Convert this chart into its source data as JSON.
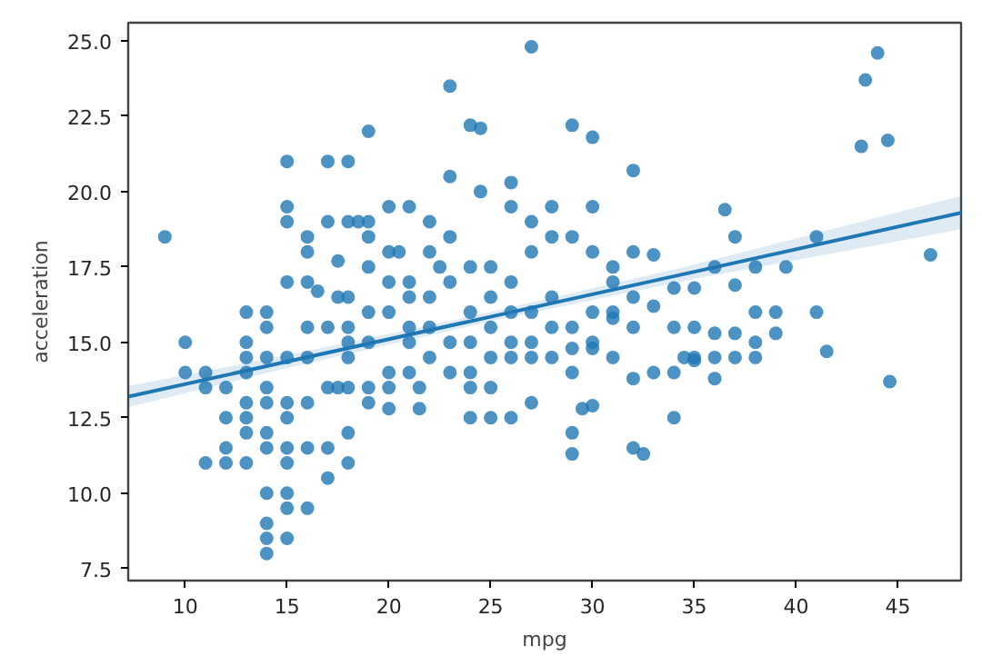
{
  "chart_data": {
    "type": "scatter",
    "xlabel": "mpg",
    "ylabel": "acceleration",
    "xlim": [
      7.2,
      48.1
    ],
    "ylim": [
      7.1,
      25.6
    ],
    "xticks": [
      10,
      15,
      20,
      25,
      30,
      35,
      40,
      45
    ],
    "yticks": [
      {
        "value": 7.5,
        "label": "7.5"
      },
      {
        "value": 10,
        "label": "10.0"
      },
      {
        "value": 12.5,
        "label": "12.5"
      },
      {
        "value": 15,
        "label": "15.0"
      },
      {
        "value": 17.5,
        "label": "17.5"
      },
      {
        "value": 20,
        "label": "20.0"
      },
      {
        "value": 22.5,
        "label": "22.5"
      },
      {
        "value": 25,
        "label": "25.0"
      }
    ],
    "grid": false,
    "series": [
      {
        "marker": "circle",
        "color": "#1f77b4",
        "x": [
          9,
          10,
          10,
          11,
          11,
          11,
          12,
          12,
          12,
          12,
          13,
          13,
          13,
          13,
          13,
          13,
          13,
          13,
          14,
          14,
          14,
          14,
          14,
          14,
          14,
          14,
          14,
          14,
          14,
          15,
          15,
          15,
          15,
          15,
          15,
          15,
          15,
          15,
          15,
          15,
          15,
          16,
          16,
          16,
          16,
          16,
          16,
          16,
          16,
          16.5,
          17,
          17,
          17,
          17,
          17,
          17,
          17.5,
          17.5,
          17.5,
          18,
          18,
          18,
          18,
          18,
          18,
          18,
          18,
          18,
          18.5,
          19,
          19,
          19,
          19,
          19,
          19,
          19,
          19,
          20,
          20,
          20,
          20,
          20,
          20,
          20,
          20.5,
          21,
          21,
          21,
          21,
          21,
          21,
          21.5,
          21.5,
          22,
          22,
          22,
          22,
          22,
          22.5,
          23,
          23,
          23,
          23,
          23,
          23,
          24,
          24,
          24,
          24,
          24,
          24,
          24,
          24.5,
          24.5,
          25,
          25,
          25,
          25,
          25,
          25,
          26,
          26,
          26,
          26,
          26,
          26,
          26,
          27,
          27,
          27,
          27,
          27,
          27,
          27,
          28,
          28,
          28,
          28,
          28,
          29,
          29,
          29,
          29,
          29,
          29,
          29.5,
          29,
          30,
          30,
          30,
          30,
          30,
          30,
          30,
          31,
          31,
          31,
          31,
          31,
          32,
          32,
          32,
          32,
          32,
          32,
          32.5,
          33,
          33,
          33,
          34,
          34,
          34,
          34,
          34.5,
          35,
          35,
          35,
          35,
          36,
          36,
          36,
          36,
          36.5,
          37,
          37,
          37,
          37,
          38,
          38,
          38,
          38,
          39,
          39,
          39.5,
          41,
          41,
          41.5,
          43.2,
          43.4,
          44,
          44.5,
          44.6,
          46.6
        ],
        "values": [
          18.5,
          15,
          14,
          14,
          13.5,
          11,
          13.5,
          12.5,
          11.5,
          11,
          16,
          15,
          14.5,
          14,
          13,
          12.5,
          12,
          11,
          16,
          15.5,
          14.5,
          13.5,
          13,
          12,
          11.5,
          10,
          9,
          8.5,
          8,
          21,
          19.5,
          19,
          17,
          14.5,
          13,
          12.5,
          11.5,
          11,
          10,
          9.5,
          8.5,
          18.5,
          18,
          17,
          15.5,
          14.5,
          13,
          11.5,
          9.5,
          16.7,
          21,
          19,
          15.5,
          13.5,
          11.5,
          10.5,
          17.7,
          16.5,
          13.5,
          21,
          19,
          16.5,
          15.5,
          15,
          14.5,
          13.5,
          11,
          12,
          19,
          22,
          19,
          18.5,
          17.5,
          16,
          15,
          13.5,
          13,
          19.5,
          18,
          17,
          16,
          14,
          13.5,
          12.8,
          18,
          19.5,
          17,
          16.5,
          15.5,
          15,
          14,
          13.5,
          12.8,
          19,
          18,
          16.5,
          15.5,
          14.5,
          17.5,
          23.5,
          20.5,
          18.5,
          17,
          15,
          14,
          22.2,
          17.5,
          16,
          15,
          14,
          13.5,
          12.5,
          22.1,
          20,
          17.5,
          16.5,
          15.5,
          14.5,
          13.5,
          12.5,
          20.3,
          19.5,
          17,
          16,
          15,
          14.5,
          12.5,
          24.8,
          19,
          18,
          16,
          15,
          14.5,
          13,
          19.5,
          18.5,
          16.5,
          15.5,
          14.5,
          22.2,
          18.5,
          15.5,
          14.8,
          14,
          12,
          12.8,
          11.3,
          21.8,
          19.5,
          18,
          16,
          15,
          14.8,
          12.9,
          17.5,
          17,
          16,
          15.8,
          14.5,
          20.7,
          18,
          16.5,
          15.5,
          13.8,
          11.5,
          11.3,
          17.9,
          16.2,
          14,
          16.8,
          15.5,
          14,
          12.5,
          14.5,
          16.8,
          15.5,
          14.5,
          14.4,
          17.5,
          15.3,
          14.5,
          13.8,
          19.4,
          18.5,
          16.9,
          15.3,
          14.5,
          17.5,
          16,
          15,
          14.5,
          16,
          15.3,
          17.5,
          18.5,
          16,
          14.7,
          21.5,
          23.7,
          24.6,
          21.7,
          13.7,
          17.9
        ]
      },
      {
        "type": "line",
        "color": "#1f77b4",
        "x": [
          7.2,
          15,
          25,
          35,
          48.1
        ],
        "values": [
          13.2,
          14.36,
          15.85,
          17.34,
          19.3
        ],
        "lower": [
          12.85,
          14.15,
          15.7,
          17.1,
          18.75
        ],
        "upper": [
          13.55,
          14.57,
          16.0,
          17.58,
          19.85
        ]
      }
    ]
  }
}
